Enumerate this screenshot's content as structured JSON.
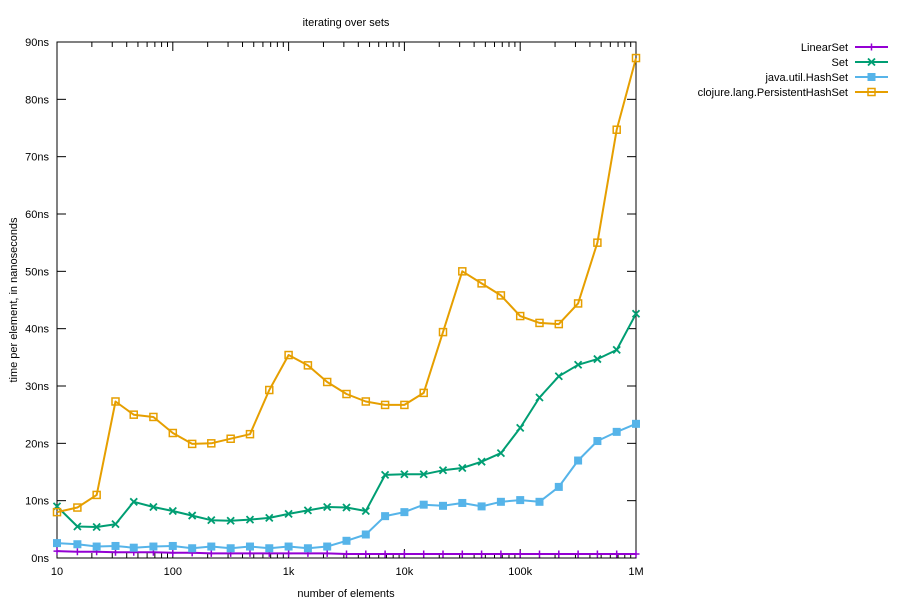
{
  "chart_data": {
    "type": "line",
    "title": "iterating over sets",
    "xlabel": "number of elements",
    "ylabel": "time per element, in nanoseconds",
    "xscale": "log",
    "xlim": [
      10,
      1000000
    ],
    "ylim": [
      0,
      90
    ],
    "grid": false,
    "legend_position": "top-right, outside plot",
    "x_ticks": [
      {
        "value": 10,
        "label": "10"
      },
      {
        "value": 100,
        "label": "100"
      },
      {
        "value": 1000,
        "label": "1k"
      },
      {
        "value": 10000,
        "label": "10k"
      },
      {
        "value": 100000,
        "label": "100k"
      },
      {
        "value": 1000000,
        "label": "1M"
      }
    ],
    "y_ticks": [
      {
        "value": 0,
        "label": "0ns"
      },
      {
        "value": 10,
        "label": "10ns"
      },
      {
        "value": 20,
        "label": "20ns"
      },
      {
        "value": 30,
        "label": "30ns"
      },
      {
        "value": 40,
        "label": "40ns"
      },
      {
        "value": 50,
        "label": "50ns"
      },
      {
        "value": 60,
        "label": "60ns"
      },
      {
        "value": 70,
        "label": "70ns"
      },
      {
        "value": 80,
        "label": "80ns"
      },
      {
        "value": 90,
        "label": "90ns"
      }
    ],
    "x": [
      10,
      15,
      22,
      32,
      46,
      68,
      100,
      147,
      215,
      316,
      464,
      681,
      1000,
      1468,
      2154,
      3162,
      4642,
      6813,
      10000,
      14678,
      21544,
      31623,
      46416,
      68129,
      100000,
      146780,
      215443,
      316228,
      464159,
      681292,
      1000000
    ],
    "series": [
      {
        "name": "LinearSet",
        "color": "#9400d3",
        "marker": "plus",
        "values": [
          1.2,
          1.1,
          1.1,
          1.0,
          1.0,
          1.0,
          0.9,
          0.9,
          0.8,
          0.8,
          0.8,
          0.8,
          0.8,
          0.8,
          0.8,
          0.7,
          0.7,
          0.7,
          0.7,
          0.7,
          0.7,
          0.7,
          0.7,
          0.7,
          0.7,
          0.7,
          0.7,
          0.7,
          0.7,
          0.7,
          0.7
        ]
      },
      {
        "name": "Set",
        "color": "#009e73",
        "marker": "cross",
        "values": [
          9.0,
          5.5,
          5.4,
          5.9,
          9.8,
          8.9,
          8.2,
          7.4,
          6.6,
          6.5,
          6.7,
          7.0,
          7.7,
          8.3,
          8.9,
          8.8,
          8.2,
          14.5,
          14.6,
          14.6,
          15.3,
          15.7,
          16.8,
          18.3,
          22.7,
          28.0,
          31.7,
          33.7,
          34.7,
          36.3,
          42.6
        ]
      },
      {
        "name": "java.util.HashSet",
        "color": "#56b4e9",
        "marker": "filled-square",
        "values": [
          2.6,
          2.4,
          2.0,
          2.1,
          1.8,
          2.0,
          2.1,
          1.7,
          2.0,
          1.7,
          2.0,
          1.7,
          2.0,
          1.7,
          2.0,
          3.0,
          4.1,
          7.3,
          8.0,
          9.3,
          9.1,
          9.6,
          9.0,
          9.8,
          10.1,
          9.8,
          12.4,
          17.0,
          20.4,
          22.0,
          23.4
        ]
      },
      {
        "name": "clojure.lang.PersistentHashSet",
        "color": "#e69f00",
        "marker": "open-square",
        "values": [
          8.0,
          8.8,
          11.0,
          27.3,
          25.0,
          24.6,
          21.8,
          19.9,
          20.0,
          20.8,
          21.6,
          29.3,
          35.4,
          33.6,
          30.7,
          28.6,
          27.3,
          26.7,
          26.7,
          28.8,
          39.4,
          50.0,
          47.9,
          45.8,
          42.2,
          41.0,
          40.8,
          44.4,
          55.0,
          74.7,
          87.2
        ]
      }
    ]
  }
}
